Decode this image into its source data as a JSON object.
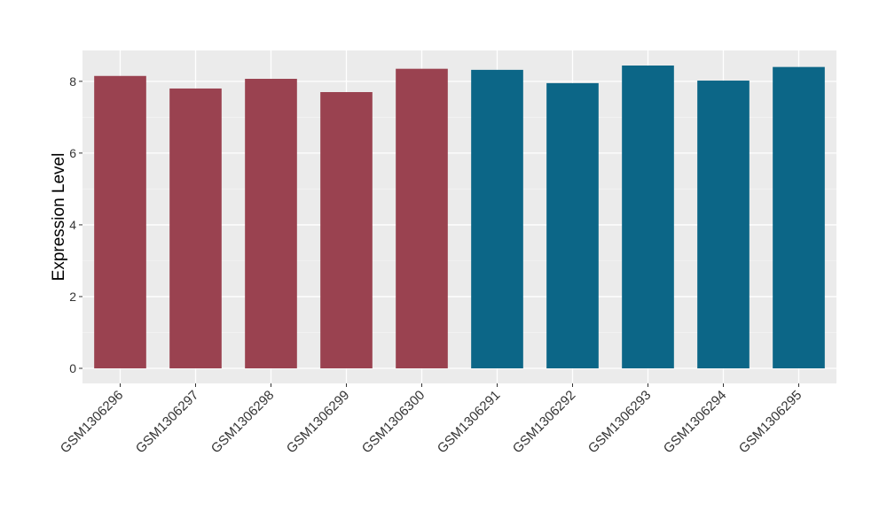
{
  "chart_data": {
    "type": "bar",
    "y_label": "Expression Level",
    "categories": [
      "GSM1306296",
      "GSM1306297",
      "GSM1306298",
      "GSM1306299",
      "GSM1306300",
      "GSM1306291",
      "GSM1306292",
      "GSM1306293",
      "GSM1306294",
      "GSM1306295"
    ],
    "values": [
      8.15,
      7.8,
      8.07,
      7.7,
      8.35,
      8.32,
      7.95,
      8.44,
      8.02,
      8.4
    ],
    "colors": [
      "#9a4250",
      "#9a4250",
      "#9a4250",
      "#9a4250",
      "#9a4250",
      "#0c6687",
      "#0c6687",
      "#0c6687",
      "#0c6687",
      "#0c6687"
    ],
    "ylim": [
      -0.42,
      8.86
    ],
    "yticks": [
      0,
      2,
      4,
      6,
      8
    ],
    "minor_yticks": [
      1,
      3,
      5,
      7
    ],
    "grid": true
  }
}
